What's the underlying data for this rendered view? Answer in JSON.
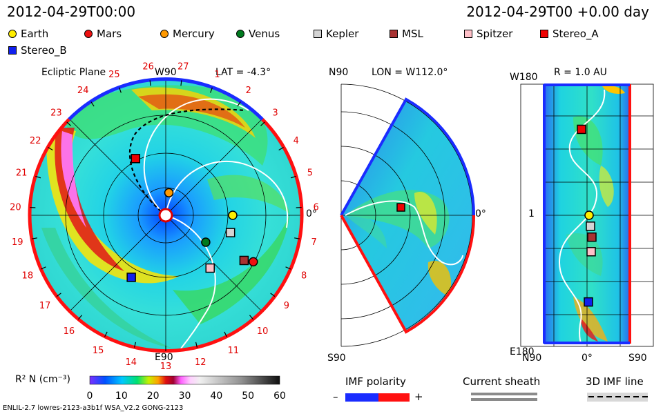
{
  "header": {
    "left_time": "2012-04-29T00:00",
    "right_time": "2012-04-29T00 +0.00 day"
  },
  "legend": [
    {
      "name": "Earth",
      "shape": "circle",
      "color": "#ffee00"
    },
    {
      "name": "Mars",
      "shape": "circle",
      "color": "#ee1010"
    },
    {
      "name": "Mercury",
      "shape": "circle",
      "color": "#ff9900"
    },
    {
      "name": "Venus",
      "shape": "circle",
      "color": "#007a1f"
    },
    {
      "name": "Kepler",
      "shape": "square",
      "color": "#d4d4d4"
    },
    {
      "name": "MSL",
      "shape": "square",
      "color": "#a83232"
    },
    {
      "name": "Spitzer",
      "shape": "square",
      "color": "#ffc0c8"
    },
    {
      "name": "Stereo_A",
      "shape": "square",
      "color": "#ee0000"
    },
    {
      "name": "Stereo_B",
      "shape": "square",
      "color": "#1020ee"
    }
  ],
  "panels": {
    "ecliptic": {
      "title": "Ecliptic Plane",
      "top_label": "W90",
      "bottom_label": "E90",
      "right_label": "0°",
      "lat_label": "LAT = -4.3°",
      "carrington_ticks": [
        "19",
        "20",
        "21",
        "22",
        "23",
        "24",
        "25",
        "26",
        "27",
        "1",
        "2",
        "3",
        "4",
        "5",
        "6",
        "7",
        "8",
        "9",
        "10",
        "11",
        "12",
        "13",
        "14",
        "15",
        "16",
        "17",
        "18"
      ]
    },
    "meridional": {
      "top_left": "N90",
      "bottom_left": "S90",
      "right_label": "0°",
      "lon_label": "LON = W112.0°"
    },
    "radial": {
      "title": "R = 1.0 AU",
      "top_left": "W180",
      "mid_left": "1",
      "bottom_left": "E180",
      "bottom_ticks": [
        "N90",
        "0°",
        "S90"
      ]
    }
  },
  "colorbar": {
    "label": "R² N (cm⁻³)",
    "ticks": [
      "0",
      "10",
      "20",
      "30",
      "40",
      "50",
      "60"
    ]
  },
  "imf_polarity": {
    "title": "IMF polarity",
    "minus": "–",
    "plus": "+"
  },
  "current_sheath": {
    "title": "Current sheath"
  },
  "imf_line": {
    "title": "3D IMF line"
  },
  "footer": {
    "model": "ENLIL-2.7 lowres-2123-a3b1f WSA_V2.2 GONG-2123"
  },
  "chart_data": {
    "type": "heatmap",
    "series": [
      {
        "name": "Earth",
        "x": 1.0,
        "y": 0
      },
      {
        "name": "Mars",
        "x": 1.48,
        "y": -28
      },
      {
        "name": "Mercury",
        "x": 0.34,
        "y": 82
      },
      {
        "name": "Venus",
        "x": 0.72,
        "y": -34
      },
      {
        "name": "Kepler",
        "x": 1.0,
        "y": -15
      },
      {
        "name": "MSL",
        "x": 1.35,
        "y": -30
      },
      {
        "name": "Spitzer",
        "x": 1.03,
        "y": -50
      },
      {
        "name": "Stereo_A",
        "x": 0.96,
        "y": 118
      },
      {
        "name": "Stereo_B",
        "x": 1.06,
        "y": -119
      }
    ],
    "colorscale_range": [
      0,
      60
    ]
  }
}
